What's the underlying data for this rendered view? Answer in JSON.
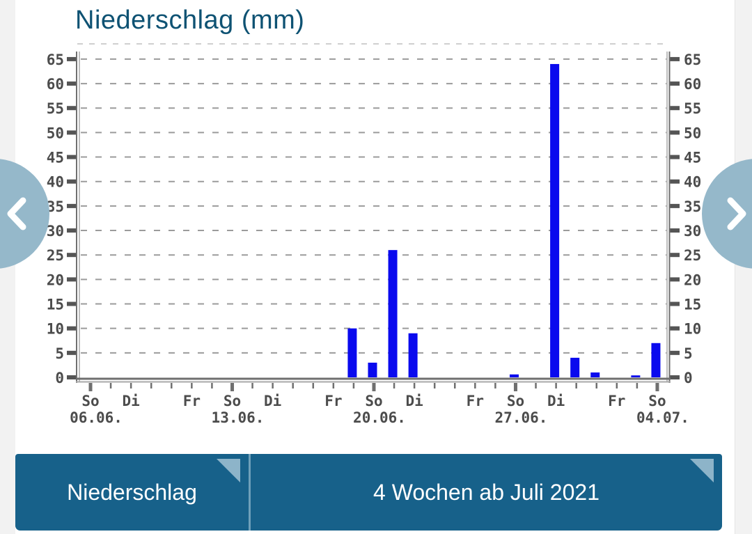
{
  "page": {
    "background": "#ffffff",
    "margin_color": "#f2f2f2"
  },
  "header": {
    "title": "Niederschlag (mm)",
    "color": "#0e5273"
  },
  "nav": {
    "prev_icon": "chevron-left",
    "next_icon": "chevron-right",
    "circle_color": "#95b8ca",
    "arrow_color": "#ffffff"
  },
  "footer": {
    "background": "#17618a",
    "divider_color": "#6fa0ba",
    "fold_color": "#8db4c9",
    "left_label": "Niederschlag",
    "right_label": "4 Wochen ab Juli 2021",
    "text_color": "#ffffff"
  },
  "chart_data": {
    "type": "bar",
    "title": "Niederschlag (mm)",
    "unit": "mm",
    "ylim": [
      0,
      65
    ],
    "ytick_step": 5,
    "yticks": [
      0,
      5,
      10,
      15,
      20,
      25,
      30,
      35,
      40,
      45,
      50,
      55,
      60,
      65
    ],
    "grid": "horizontal-dashed",
    "legend": "none",
    "x_axis_note": "daily ticks from 06.06.2021 to 04.07.2021; Sunday ticks emphasized",
    "x_ticks": [
      {
        "day": 0,
        "label": "So",
        "date": "06.06."
      },
      {
        "day": 2,
        "label": "Di",
        "date": ""
      },
      {
        "day": 5,
        "label": "Fr",
        "date": ""
      },
      {
        "day": 7,
        "label": "So",
        "date": "13.06."
      },
      {
        "day": 9,
        "label": "Di",
        "date": ""
      },
      {
        "day": 12,
        "label": "Fr",
        "date": ""
      },
      {
        "day": 14,
        "label": "So",
        "date": "20.06."
      },
      {
        "day": 16,
        "label": "Di",
        "date": ""
      },
      {
        "day": 19,
        "label": "Fr",
        "date": ""
      },
      {
        "day": 21,
        "label": "So",
        "date": "27.06."
      },
      {
        "day": 23,
        "label": "Di",
        "date": ""
      },
      {
        "day": 26,
        "label": "Fr",
        "date": ""
      },
      {
        "day": 28,
        "label": "So",
        "date": "04.07."
      }
    ],
    "bars": [
      {
        "day": 13,
        "date": "Sa 19.06.",
        "value": 10
      },
      {
        "day": 14,
        "date": "So 20.06.",
        "value": 3
      },
      {
        "day": 15,
        "date": "Mo 21.06.",
        "value": 26
      },
      {
        "day": 16,
        "date": "Di 22.06.",
        "value": 9
      },
      {
        "day": 21,
        "date": "So 27.06.",
        "value": 0.6
      },
      {
        "day": 23,
        "date": "Di 29.06.",
        "value": 64
      },
      {
        "day": 24,
        "date": "Mi 30.06.",
        "value": 4
      },
      {
        "day": 25,
        "date": "Do 01.07.",
        "value": 1
      },
      {
        "day": 27,
        "date": "Sa 03.07.",
        "value": 0.4
      },
      {
        "day": 28,
        "date": "So 04.07.",
        "value": 7
      }
    ],
    "colors": {
      "bar": "#0a0aee",
      "axis": "#6f6f6f",
      "axis_inner": "#a8a8a8",
      "grid": "#9b9b9b",
      "grid_top": "#cfcfcf",
      "tick": "#555555",
      "tick_label": "#4c4c4c"
    }
  }
}
